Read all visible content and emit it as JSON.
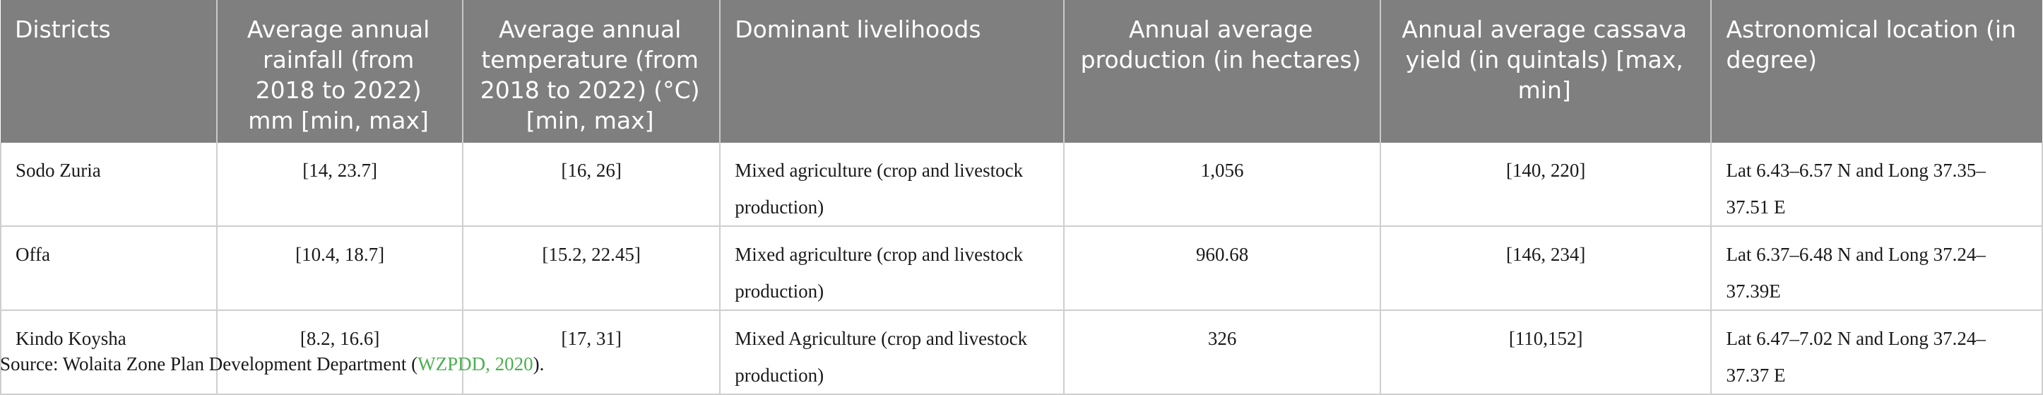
{
  "table": {
    "headers": [
      "Districts",
      "Average annual rainfall (from 2018 to 2022) mm [min, max]",
      "Average annual temperature (from 2018 to 2022) (°C) [min, max]",
      "Dominant livelihoods",
      "Annual average production (in hectares)",
      "Annual average cassava yield (in quintals) [max, min]",
      "Astronomical location (in degree)"
    ],
    "rows": [
      [
        "Sodo Zuria",
        "[14, 23.7]",
        "[16, 26]",
        "Mixed agriculture (crop and livestock production)",
        "1,056",
        "[140, 220]",
        "Lat 6.43–6.57 N and Long 37.35–37.51 E"
      ],
      [
        "Offa",
        "[10.4, 18.7]",
        "[15.2, 22.45]",
        "Mixed agriculture (crop and livestock production)",
        "960.68",
        "[146, 234]",
        "Lat 6.37–6.48 N and Long 37.24–37.39E"
      ],
      [
        "Kindo Koysha",
        "[8.2, 16.6]",
        "[17, 31]",
        "Mixed Agriculture (crop and livestock production)",
        "326",
        "[110,152]",
        "Lat 6.47–7.02 N and Long 37.24–37.37 E"
      ]
    ]
  },
  "source": {
    "prefix": "Source: Wolaita Zone Plan Development Department (",
    "ref": "WZPDD, 2020",
    "suffix": ")."
  }
}
